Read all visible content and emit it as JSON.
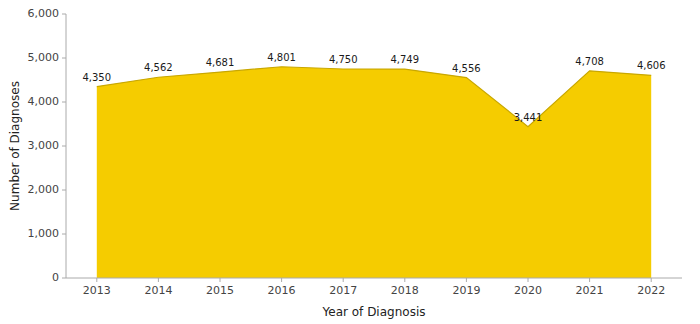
{
  "chart_data": {
    "type": "area",
    "x": [
      2013,
      2014,
      2015,
      2016,
      2017,
      2018,
      2019,
      2020,
      2021,
      2022
    ],
    "values": [
      4350,
      4562,
      4681,
      4801,
      4750,
      4749,
      4556,
      3441,
      4708,
      4606
    ],
    "value_labels": [
      "4,350",
      "4,562",
      "4,681",
      "4,801",
      "4,750",
      "4,749",
      "4,556",
      "3,441",
      "4,708",
      "4,606"
    ],
    "data_labels": true,
    "color": "#F5CC00",
    "xlabel": "Year of Diagnosis",
    "ylabel": "Number of Diagnoses",
    "xlim": [
      2012.5,
      2022.5
    ],
    "xticks": [
      2013,
      2014,
      2015,
      2016,
      2017,
      2018,
      2019,
      2020,
      2021,
      2022
    ],
    "ylim": [
      0,
      6000
    ],
    "yticks": [
      0,
      {
        "value": 1000,
        "label": "1,000"
      },
      {
        "value": 2000,
        "label": "2,000"
      },
      {
        "value": 3000,
        "label": "3,000"
      },
      {
        "value": 4000,
        "label": "4,000"
      },
      {
        "value": 5000,
        "label": "5,000"
      },
      {
        "value": 6000,
        "label": "6,000"
      }
    ],
    "grid": false
  }
}
